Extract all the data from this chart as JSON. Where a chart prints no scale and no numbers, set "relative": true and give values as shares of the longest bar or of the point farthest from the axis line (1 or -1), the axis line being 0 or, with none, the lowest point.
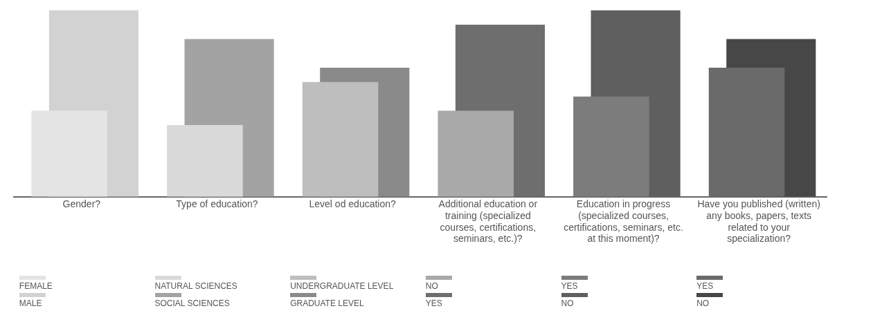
{
  "chart_data": {
    "type": "bar",
    "relative": true,
    "legend": "bottom",
    "grid": false,
    "categories": [
      "Gender?",
      "Type of education?",
      "Level od education?",
      "Additional education or training (specialized courses, certifications, seminars, etc.)?",
      "Education in progress (specialized courses, certifications, seminars, etc. at this moment)?",
      "Have you published (written) any books, papers, texts related to your specialization?"
    ],
    "series": [
      {
        "name": "FEMALE",
        "color": "#e4e4e4",
        "values": [
          0.462,
          null,
          null,
          null,
          null,
          null
        ]
      },
      {
        "name": "MALE",
        "color": "#d2d2d2",
        "values": [
          1,
          null,
          null,
          null,
          null,
          null
        ]
      },
      {
        "name": "NATURAL SCIENCES",
        "color": "#dadada",
        "values": [
          null,
          0.385,
          null,
          null,
          null,
          null
        ]
      },
      {
        "name": "SOCIAL SCIENCES",
        "color": "#a3a3a3",
        "values": [
          null,
          0.846,
          null,
          null,
          null,
          null
        ]
      },
      {
        "name": "UNDERGRADUATE LEVEL",
        "color": "#bebebe",
        "values": [
          null,
          null,
          0.615,
          null,
          null,
          null
        ]
      },
      {
        "name": "GRADUATE LEVEL",
        "color": "#8a8a8a",
        "values": [
          null,
          null,
          0.692,
          null,
          null,
          null
        ]
      },
      {
        "name": "NO",
        "color": "#a9a9a9",
        "values": [
          null,
          null,
          null,
          0.462,
          null,
          null
        ]
      },
      {
        "name": "YES",
        "color": "#6e6e6e",
        "values": [
          null,
          null,
          null,
          0.923,
          null,
          null
        ]
      },
      {
        "name": "YES",
        "color": "#7c7c7c",
        "values": [
          null,
          null,
          null,
          null,
          0.538,
          null
        ]
      },
      {
        "name": "NO",
        "color": "#5f5f5f",
        "values": [
          null,
          null,
          null,
          null,
          1,
          null
        ]
      },
      {
        "name": "YES",
        "color": "#6a6a6a",
        "values": [
          null,
          null,
          null,
          null,
          null,
          0.692
        ]
      },
      {
        "name": "NO",
        "color": "#474747",
        "values": [
          null,
          null,
          null,
          null,
          null,
          0.846
        ]
      }
    ]
  }
}
